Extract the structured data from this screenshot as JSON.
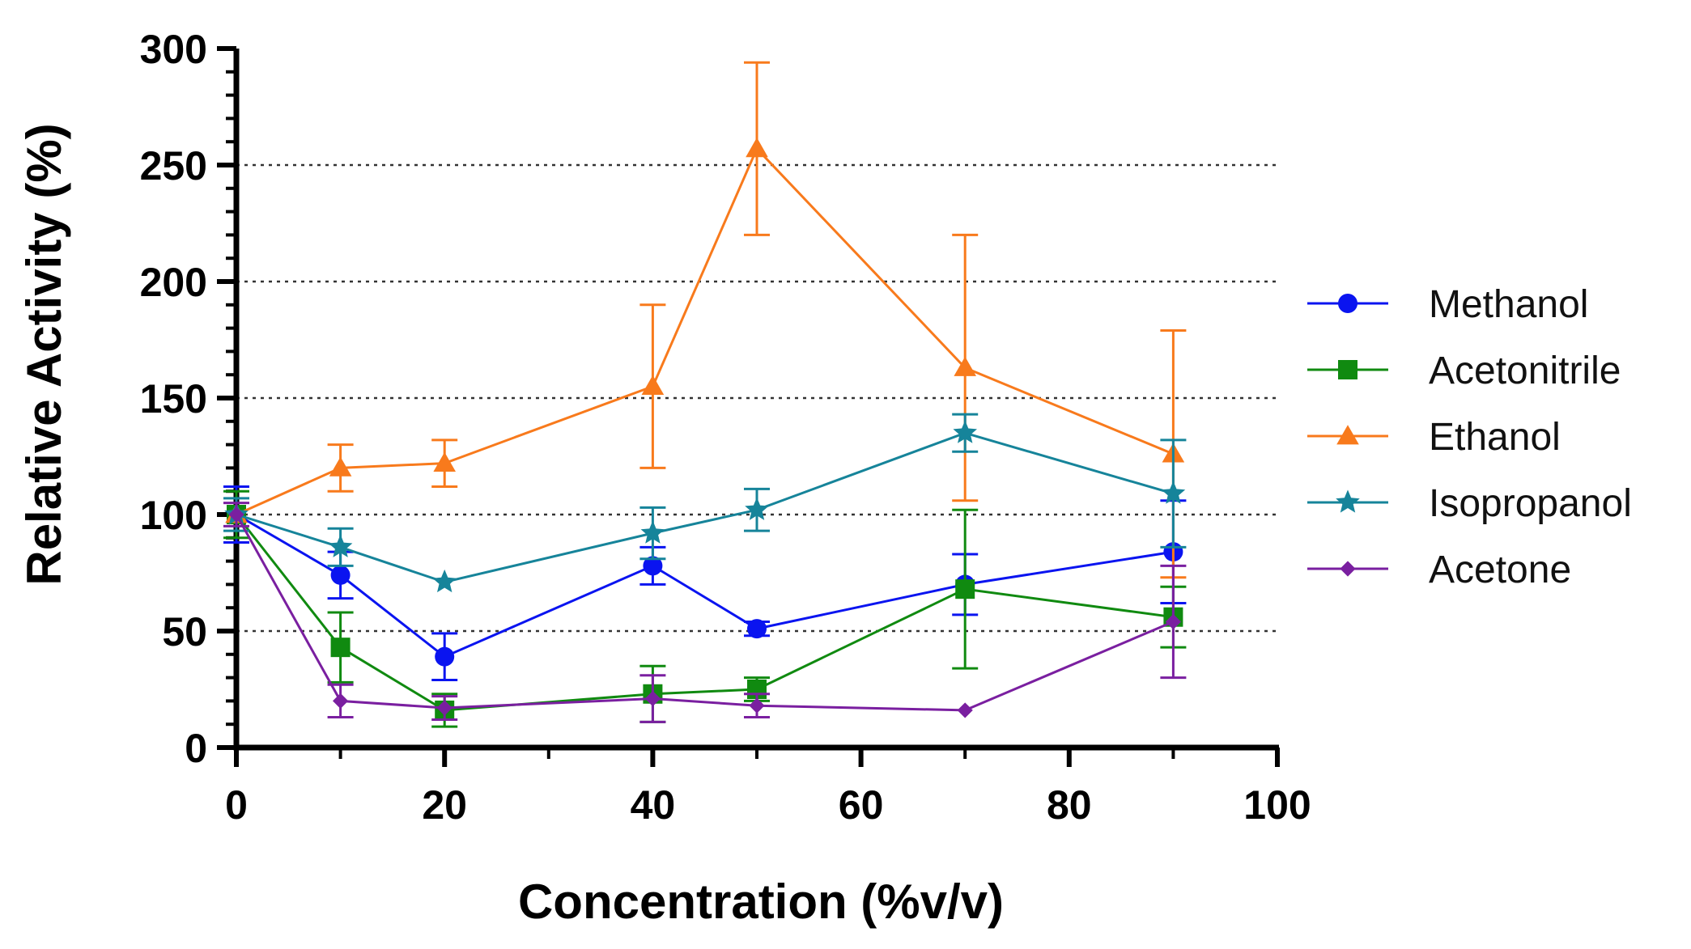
{
  "chart_data": {
    "type": "line",
    "xlabel": "Concentration (%v/v)",
    "ylabel": "Relative Activity (%)",
    "xlim": [
      0,
      100
    ],
    "ylim": [
      0,
      300
    ],
    "x_ticks": [
      "0",
      "20",
      "40",
      "60",
      "80",
      "100"
    ],
    "y_ticks": [
      "0",
      "50",
      "100",
      "150",
      "200",
      "250",
      "300"
    ],
    "x_tick_values": [
      0,
      20,
      40,
      60,
      80,
      100
    ],
    "y_tick_values": [
      0,
      50,
      100,
      150,
      200,
      250,
      300
    ],
    "x_minor_tick_values": [
      10,
      30,
      50,
      70,
      90
    ],
    "y_minor_tick_values": [
      10,
      20,
      30,
      40,
      60,
      70,
      80,
      90,
      110,
      120,
      130,
      140,
      160,
      170,
      180,
      190,
      210,
      220,
      230,
      240,
      260,
      270,
      280,
      290
    ],
    "gridlines_y": [
      50,
      100,
      150,
      200,
      250
    ],
    "legend_position": "right",
    "series": [
      {
        "name": "Methanol",
        "color": "#0a14f0",
        "marker": "circle",
        "x": [
          0,
          10,
          20,
          40,
          50,
          70,
          90
        ],
        "values": [
          100,
          74,
          39,
          78,
          51,
          70,
          84
        ],
        "error": [
          12,
          10,
          10,
          8,
          3,
          13,
          22
        ]
      },
      {
        "name": "Acetonitrile",
        "color": "#108a10",
        "marker": "square",
        "x": [
          0,
          10,
          20,
          40,
          50,
          70,
          90
        ],
        "values": [
          100,
          43,
          16,
          23,
          25,
          68,
          56
        ],
        "error": [
          10,
          15,
          7,
          12,
          5,
          34,
          13
        ]
      },
      {
        "name": "Ethanol",
        "color": "#f87a1c",
        "marker": "triangle",
        "x": [
          0,
          10,
          20,
          40,
          50,
          70,
          90
        ],
        "values": [
          100,
          120,
          122,
          155,
          257,
          163,
          126
        ],
        "error": [
          0,
          10,
          10,
          35,
          37,
          57,
          53
        ]
      },
      {
        "name": "Isopropanol",
        "color": "#16849a",
        "marker": "star",
        "x": [
          0,
          10,
          20,
          40,
          50,
          70,
          90
        ],
        "values": [
          100,
          86,
          71,
          92,
          102,
          135,
          109
        ],
        "error": [
          7,
          8,
          0,
          11,
          9,
          8,
          23
        ]
      },
      {
        "name": "Acetone",
        "color": "#7a1fa0",
        "marker": "diamond",
        "x": [
          0,
          10,
          20,
          40,
          50,
          70,
          90
        ],
        "values": [
          100,
          20,
          17,
          21,
          18,
          16,
          54
        ],
        "error": [
          5,
          7,
          5,
          10,
          5,
          0,
          24
        ]
      }
    ]
  }
}
